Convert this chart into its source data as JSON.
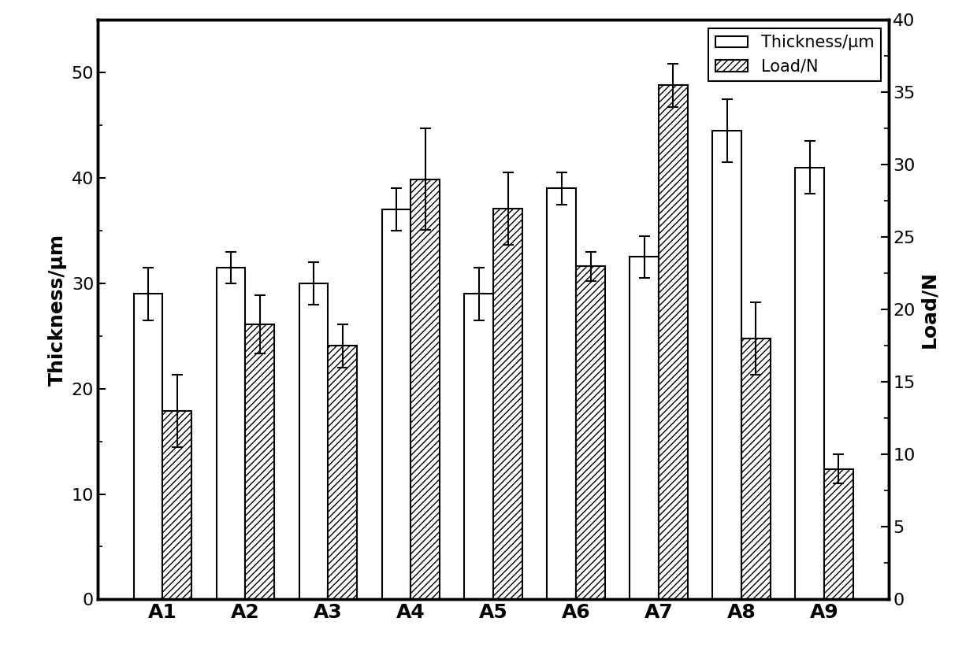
{
  "categories": [
    "A1",
    "A2",
    "A3",
    "A4",
    "A5",
    "A6",
    "A7",
    "A8",
    "A9"
  ],
  "thickness_values": [
    29.0,
    31.5,
    30.0,
    37.0,
    29.0,
    39.0,
    32.5,
    44.5,
    41.0
  ],
  "thickness_errors": [
    2.5,
    1.5,
    2.0,
    2.0,
    2.5,
    1.5,
    2.0,
    3.0,
    2.5
  ],
  "load_values": [
    13.0,
    19.0,
    17.5,
    29.0,
    27.0,
    23.0,
    35.5,
    18.0,
    9.0
  ],
  "load_errors": [
    2.5,
    2.0,
    1.5,
    3.5,
    2.5,
    1.0,
    1.5,
    2.5,
    1.0
  ],
  "thickness_ylim": [
    0,
    55
  ],
  "load_ylim": [
    0,
    40
  ],
  "thickness_yticks": [
    0,
    10,
    20,
    30,
    40,
    50
  ],
  "load_yticks": [
    0,
    5,
    10,
    15,
    20,
    25,
    30,
    35,
    40
  ],
  "ylabel_left": "Thickness/μm",
  "ylabel_right": "Load/N",
  "legend_thickness": "Thickness/μm",
  "legend_load": "Load/N",
  "bar_width": 0.35,
  "hatch_pattern": "////",
  "thickness_color": "white",
  "load_color": "white",
  "edge_color": "black",
  "figure_width": 12.4,
  "figure_height": 8.46,
  "dpi": 100,
  "font_size": 18,
  "tick_font_size": 16,
  "legend_font_size": 15,
  "spine_linewidth": 2.5,
  "bar_linewidth": 1.5,
  "error_linewidth": 1.5,
  "capsize": 5
}
